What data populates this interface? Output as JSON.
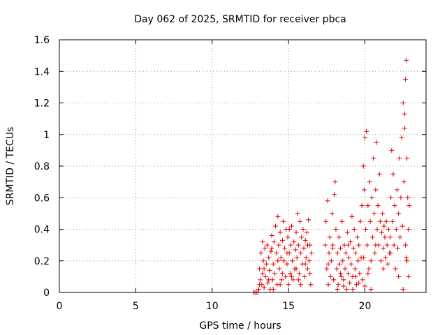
{
  "chart_data": {
    "type": "scatter",
    "title": "Day 062 of 2025, SRMTID for receiver pbca",
    "xlabel": "GPS time / hours",
    "ylabel": "SRMTID / TECUs",
    "xlim": [
      0,
      24
    ],
    "ylim": [
      0,
      1.6
    ],
    "x_ticks": [
      0,
      5,
      10,
      15,
      20
    ],
    "x_tick_labels": [
      "0",
      "5",
      "10",
      "15",
      "20"
    ],
    "y_ticks": [
      0,
      0.2,
      0.4,
      0.6,
      0.8,
      1.0,
      1.2,
      1.4,
      1.6
    ],
    "y_tick_labels": [
      "0",
      "0.2",
      "0.4",
      "0.6",
      "0.8",
      "1",
      "1.2",
      "1.4",
      "1.6"
    ],
    "grid": true,
    "marker": "+",
    "marker_color": "#e00000",
    "series": [
      {
        "name": "SRMTID",
        "points": [
          [
            12.7,
            0.0
          ],
          [
            12.8,
            0.0
          ],
          [
            12.9,
            0.0
          ],
          [
            13.0,
            0.0
          ],
          [
            13.05,
            0.02
          ],
          [
            13.1,
            0.15
          ],
          [
            13.15,
            0.08
          ],
          [
            13.2,
            0.25
          ],
          [
            13.25,
            0.05
          ],
          [
            13.3,
            0.12
          ],
          [
            13.35,
            0.2
          ],
          [
            13.4,
            0.03
          ],
          [
            13.45,
            0.28
          ],
          [
            13.5,
            0.1
          ],
          [
            13.55,
            0.18
          ],
          [
            13.6,
            0.3
          ],
          [
            13.65,
            0.06
          ],
          [
            13.7,
            0.22
          ],
          [
            13.75,
            0.14
          ],
          [
            13.8,
            0.02
          ],
          [
            13.85,
            0.26
          ],
          [
            13.9,
            0.36
          ],
          [
            13.95,
            0.08
          ],
          [
            14.0,
            0.18
          ],
          [
            14.05,
            0.32
          ],
          [
            14.1,
            0.12
          ],
          [
            14.15,
            0.42
          ],
          [
            14.2,
            0.25
          ],
          [
            14.25,
            0.05
          ],
          [
            14.3,
            0.48
          ],
          [
            14.35,
            0.3
          ],
          [
            14.4,
            0.15
          ],
          [
            14.45,
            0.38
          ],
          [
            14.5,
            0.22
          ],
          [
            14.55,
            0.08
          ],
          [
            14.6,
            0.33
          ],
          [
            14.65,
            0.45
          ],
          [
            14.7,
            0.2
          ],
          [
            14.75,
            0.28
          ],
          [
            14.8,
            0.1
          ],
          [
            14.85,
            0.4
          ],
          [
            14.9,
            0.18
          ],
          [
            14.95,
            0.35
          ],
          [
            15.0,
            0.05
          ],
          [
            15.05,
            0.25
          ],
          [
            15.1,
            0.12
          ],
          [
            15.15,
            0.3
          ],
          [
            15.2,
            0.42
          ],
          [
            15.25,
            0.2
          ],
          [
            15.3,
            0.08
          ],
          [
            15.35,
            0.32
          ],
          [
            15.4,
            0.15
          ],
          [
            15.45,
            0.27
          ],
          [
            15.5,
            0.38
          ],
          [
            15.55,
            0.22
          ],
          [
            15.6,
            0.5
          ],
          [
            15.65,
            0.3
          ],
          [
            15.7,
            0.12
          ],
          [
            15.75,
            0.45
          ],
          [
            15.8,
            0.25
          ],
          [
            15.85,
            0.35
          ],
          [
            15.9,
            0.18
          ],
          [
            15.95,
            0.4
          ],
          [
            16.0,
            0.28
          ],
          [
            16.05,
            0.1
          ],
          [
            16.1,
            0.33
          ],
          [
            16.15,
            0.22
          ],
          [
            16.2,
            0.38
          ],
          [
            16.25,
            0.15
          ],
          [
            16.3,
            0.46
          ],
          [
            16.35,
            0.2
          ],
          [
            16.4,
            0.3
          ],
          [
            16.45,
            0.05
          ],
          [
            16.5,
            0.25
          ],
          [
            13.1,
            0.05
          ],
          [
            13.4,
            0.15
          ],
          [
            13.7,
            0.08
          ],
          [
            14.0,
            0.02
          ],
          [
            14.3,
            0.2
          ],
          [
            14.6,
            0.12
          ],
          [
            14.9,
            0.25
          ],
          [
            15.2,
            0.1
          ],
          [
            15.5,
            0.15
          ],
          [
            15.8,
            0.05
          ],
          [
            16.1,
            0.18
          ],
          [
            16.4,
            0.12
          ],
          [
            13.3,
            0.32
          ],
          [
            13.9,
            0.28
          ],
          [
            14.45,
            0.05
          ],
          [
            15.05,
            0.4
          ],
          [
            15.65,
            0.08
          ],
          [
            16.25,
            0.3
          ],
          [
            17.4,
            0.3
          ],
          [
            17.45,
            0.45
          ],
          [
            17.5,
            0.15
          ],
          [
            17.55,
            0.58
          ],
          [
            17.6,
            0.05
          ],
          [
            17.65,
            0.25
          ],
          [
            17.7,
            0.35
          ],
          [
            17.75,
            0.1
          ],
          [
            17.8,
            0.2
          ],
          [
            17.85,
            0.5
          ],
          [
            17.9,
            0.3
          ],
          [
            17.95,
            0.08
          ],
          [
            18.0,
            0.62
          ],
          [
            18.05,
            0.7
          ],
          [
            18.1,
            0.4
          ],
          [
            18.15,
            0.15
          ],
          [
            18.2,
            0.25
          ],
          [
            18.25,
            0.05
          ],
          [
            18.3,
            0.35
          ],
          [
            18.35,
            0.18
          ],
          [
            18.4,
            0.28
          ],
          [
            18.45,
            0.1
          ],
          [
            18.5,
            0.45
          ],
          [
            18.55,
            0.2
          ],
          [
            18.6,
            0.08
          ],
          [
            18.65,
            0.3
          ],
          [
            18.7,
            0.15
          ],
          [
            18.75,
            0.25
          ],
          [
            18.8,
            0.02
          ],
          [
            18.85,
            0.38
          ],
          [
            18.9,
            0.12
          ],
          [
            18.95,
            0.22
          ],
          [
            19.0,
            0.06
          ],
          [
            19.05,
            0.32
          ],
          [
            19.1,
            0.18
          ],
          [
            19.15,
            0.48
          ],
          [
            19.2,
            0.1
          ],
          [
            19.25,
            0.28
          ],
          [
            19.3,
            0.4
          ],
          [
            19.35,
            0.15
          ],
          [
            19.4,
            0.25
          ],
          [
            19.45,
            0.05
          ],
          [
            19.5,
            0.35
          ],
          [
            19.55,
            0.2
          ],
          [
            19.6,
            0.3
          ],
          [
            19.65,
            0.12
          ],
          [
            19.7,
            0.45
          ],
          [
            19.75,
            0.22
          ],
          [
            19.8,
            0.55
          ],
          [
            19.85,
            0.08
          ],
          [
            19.9,
            0.8
          ],
          [
            19.95,
            0.65
          ],
          [
            20.0,
            0.98
          ],
          [
            20.05,
            0.4
          ],
          [
            20.1,
            1.02
          ],
          [
            20.15,
            0.3
          ],
          [
            20.2,
            0.55
          ],
          [
            20.25,
            0.15
          ],
          [
            20.3,
            0.7
          ],
          [
            20.35,
            0.45
          ],
          [
            20.4,
            0.2
          ],
          [
            20.45,
            0.6
          ],
          [
            20.5,
            0.35
          ],
          [
            20.55,
            0.85
          ],
          [
            20.6,
            0.5
          ],
          [
            20.65,
            0.25
          ],
          [
            20.7,
            0.65
          ],
          [
            20.75,
            0.95
          ],
          [
            20.8,
            0.4
          ],
          [
            20.85,
            0.55
          ],
          [
            20.9,
            0.3
          ],
          [
            20.95,
            0.75
          ],
          [
            21.0,
            0.45
          ],
          [
            21.05,
            0.2
          ],
          [
            21.1,
            0.38
          ],
          [
            21.15,
            0.5
          ],
          [
            21.2,
            0.28
          ],
          [
            21.25,
            0.42
          ],
          [
            21.3,
            0.35
          ],
          [
            21.35,
            0.22
          ],
          [
            21.4,
            0.45
          ],
          [
            21.45,
            0.3
          ],
          [
            21.5,
            0.18
          ],
          [
            21.55,
            0.4
          ],
          [
            21.6,
            0.25
          ],
          [
            21.65,
            0.35
          ],
          [
            21.7,
            0.6
          ],
          [
            21.75,
            0.9
          ],
          [
            21.8,
            0.45
          ],
          [
            21.85,
            0.75
          ],
          [
            21.9,
            0.3
          ],
          [
            21.95,
            0.55
          ],
          [
            22.0,
            0.15
          ],
          [
            22.05,
            0.4
          ],
          [
            22.1,
            0.65
          ],
          [
            22.15,
            0.28
          ],
          [
            22.2,
            0.5
          ],
          [
            22.25,
            0.85
          ],
          [
            22.3,
            0.35
          ],
          [
            22.35,
            0.6
          ],
          [
            22.4,
            0.98
          ],
          [
            22.45,
            0.42
          ],
          [
            22.5,
            1.2
          ],
          [
            22.55,
            0.7
          ],
          [
            22.6,
            1.04
          ],
          [
            22.65,
            0.3
          ],
          [
            22.7,
            1.47
          ],
          [
            22.75,
            0.85
          ],
          [
            22.8,
            0.6
          ],
          [
            22.85,
            0.4
          ],
          [
            22.9,
            0.55
          ],
          [
            22.6,
            1.13
          ],
          [
            22.65,
            1.35
          ],
          [
            22.75,
            0.2
          ],
          [
            22.85,
            0.1
          ],
          [
            22.5,
            0.02
          ],
          [
            18.2,
            0.02
          ],
          [
            18.6,
            0.04
          ],
          [
            19.2,
            0.02
          ],
          [
            19.6,
            0.06
          ],
          [
            20.0,
            0.04
          ],
          [
            20.4,
            0.02
          ],
          [
            17.6,
            0.18
          ],
          [
            17.9,
            0.28
          ],
          [
            18.4,
            0.12
          ],
          [
            18.9,
            0.3
          ],
          [
            19.4,
            0.1
          ],
          [
            19.9,
            0.22
          ],
          [
            20.2,
            0.12
          ],
          [
            20.7,
            0.3
          ],
          [
            21.2,
            0.15
          ],
          [
            21.7,
            0.25
          ],
          [
            22.2,
            0.1
          ],
          [
            22.7,
            0.22
          ]
        ]
      }
    ]
  }
}
